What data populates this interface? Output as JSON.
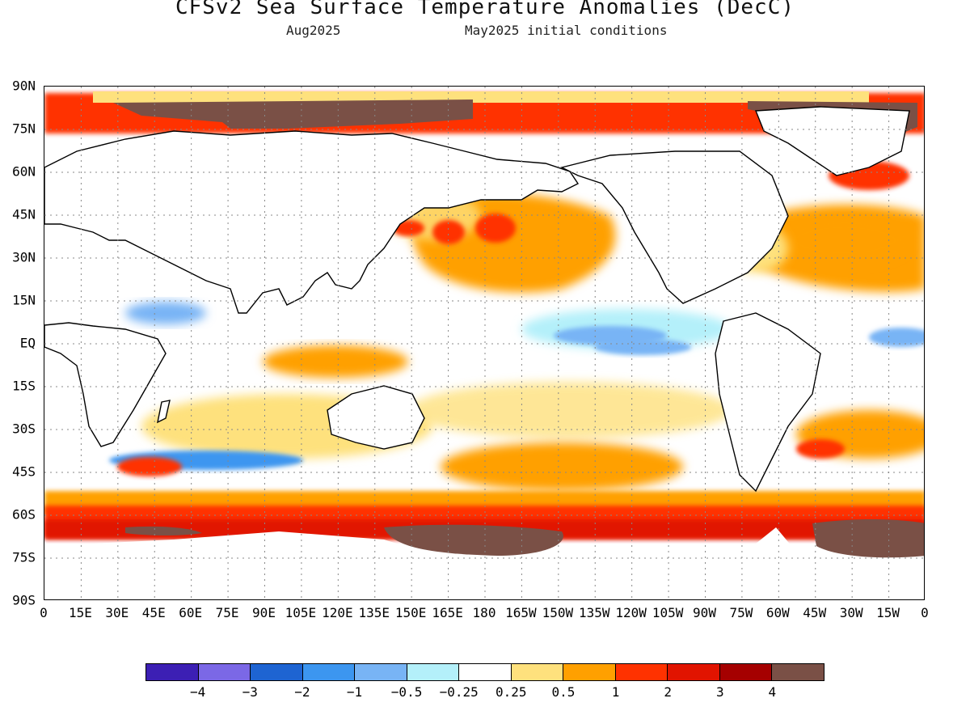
{
  "title": "CFSv2 Sea Surface Temperature Anomalies (DecC)",
  "valid_month": "Aug2025",
  "initial_conditions": "May2025 initial conditions",
  "axes": {
    "lat_labels": [
      "90N",
      "75N",
      "60N",
      "45N",
      "30N",
      "15N",
      "EQ",
      "15S",
      "30S",
      "45S",
      "60S",
      "75S",
      "90S"
    ],
    "lon_labels": [
      "0",
      "15E",
      "30E",
      "45E",
      "60E",
      "75E",
      "90E",
      "105E",
      "120E",
      "135E",
      "150E",
      "165E",
      "180",
      "165W",
      "150W",
      "135W",
      "120W",
      "105W",
      "90W",
      "75W",
      "60W",
      "45W",
      "30W",
      "15W",
      "0"
    ],
    "lat_range": [
      -90,
      90
    ],
    "lon_range": [
      0,
      360
    ],
    "grid": true
  },
  "colorbar": {
    "colors": [
      "#3c1fb4",
      "#7b68e6",
      "#1e64d2",
      "#3c96f0",
      "#78b4f5",
      "#b4f0fa",
      "#ffffff",
      "#fee17d",
      "#ffa000",
      "#ff3200",
      "#e11400",
      "#a50000",
      "#7a5046"
    ],
    "labels": [
      "−4",
      "−3",
      "−2",
      "−1",
      "−0.5",
      "−0.25",
      "0.25",
      "0.5",
      "1",
      "2",
      "3",
      "4"
    ]
  },
  "anomaly_features": [
    {
      "category": "4",
      "color": "#7a5046",
      "region": "Arctic Ocean"
    },
    {
      "category": "4",
      "color": "#7a5046",
      "region": "Southern Ocean"
    },
    {
      "category": "1",
      "color": "#ffa000",
      "region": "North Pacific"
    },
    {
      "category": "1",
      "color": "#ffa000",
      "region": "North Atlantic"
    },
    {
      "category": "-1",
      "color": "#78b4f5",
      "region": "Eastern Equatorial Pacific"
    }
  ]
}
